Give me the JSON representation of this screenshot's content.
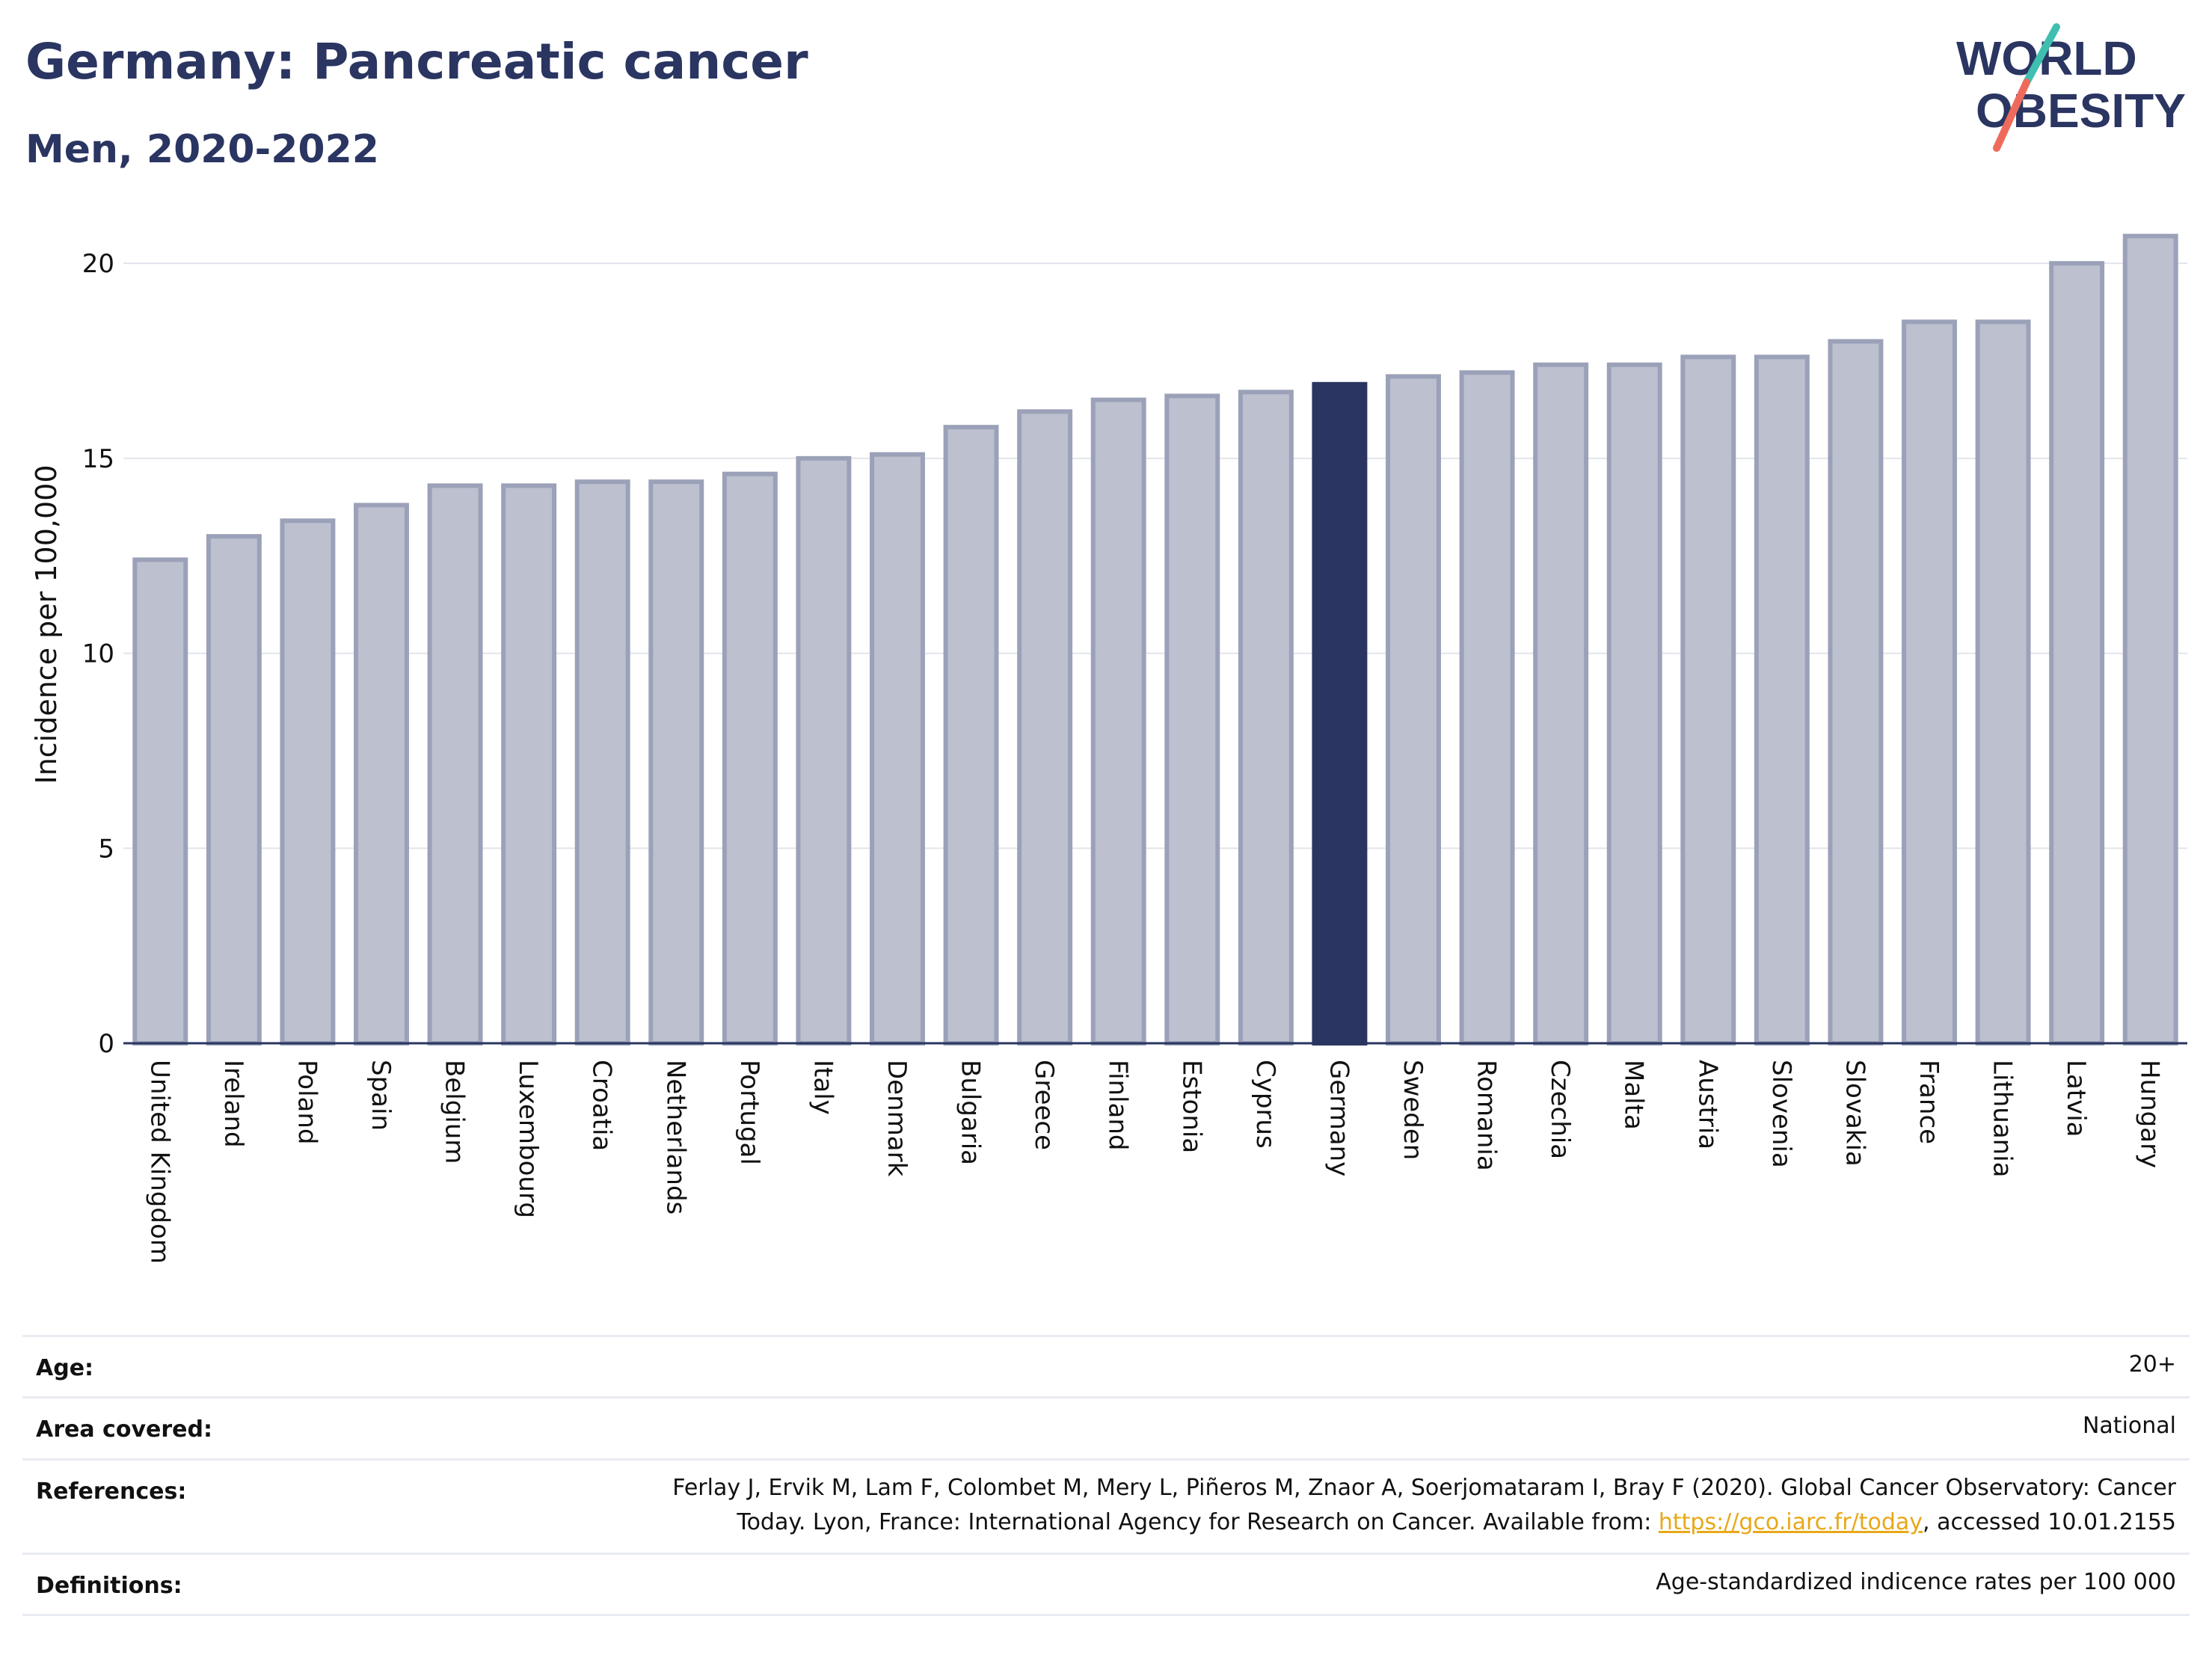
{
  "header": {
    "title": "Germany: Pancreatic cancer",
    "subtitle": "Men, 2020-2022"
  },
  "logo": {
    "line1": "WORLD",
    "line2": "OBESITY",
    "colors": {
      "text": "#2a3561",
      "teal": "#3fbfb0",
      "coral": "#ee6b5c"
    }
  },
  "chart_data": {
    "type": "bar",
    "ylabel": "Incidence per 100,000",
    "xlabel": "",
    "ylim": [
      0,
      21
    ],
    "yticks": [
      0,
      5,
      10,
      15,
      20
    ],
    "grid": true,
    "highlight": "Germany",
    "colors": {
      "bar": "#bcc0cf",
      "bar_border": "#9ba1b8",
      "highlight": "#2a3561",
      "grid": "#e3e5ec",
      "axis": "#2a3561"
    },
    "categories": [
      "United Kingdom",
      "Ireland",
      "Poland",
      "Spain",
      "Belgium",
      "Luxembourg",
      "Croatia",
      "Netherlands",
      "Portugal",
      "Italy",
      "Denmark",
      "Bulgaria",
      "Greece",
      "Finland",
      "Estonia",
      "Cyprus",
      "Germany",
      "Sweden",
      "Romania",
      "Czechia",
      "Malta",
      "Austria",
      "Slovenia",
      "Slovakia",
      "France",
      "Lithuania",
      "Latvia",
      "Hungary"
    ],
    "values": [
      12.4,
      13.0,
      13.4,
      13.8,
      14.3,
      14.3,
      14.4,
      14.4,
      14.6,
      15.0,
      15.1,
      15.8,
      16.2,
      16.5,
      16.6,
      16.7,
      16.9,
      17.1,
      17.2,
      17.4,
      17.4,
      17.6,
      17.6,
      18.0,
      18.5,
      18.5,
      20.0,
      20.7
    ]
  },
  "meta": {
    "rows": [
      {
        "label": "Age:",
        "value": "20+"
      },
      {
        "label": "Area covered:",
        "value": "National"
      },
      {
        "label": "References:",
        "value_line1": "Ferlay J, Ervik M, Lam F, Colombet M, Mery L, Piñeros M, Znaor A, Soerjomataram I, Bray F (2020). Global Cancer Observatory: Cancer",
        "value_line2_pre": "Today. Lyon, France: International Agency for Research on Cancer. Available from: ",
        "value_link": "https://gco.iarc.fr/today",
        "value_line2_post": ", accessed 10.01.2155"
      },
      {
        "label": "Definitions:",
        "value": "Age-standardized indicence rates per 100 000"
      }
    ]
  }
}
